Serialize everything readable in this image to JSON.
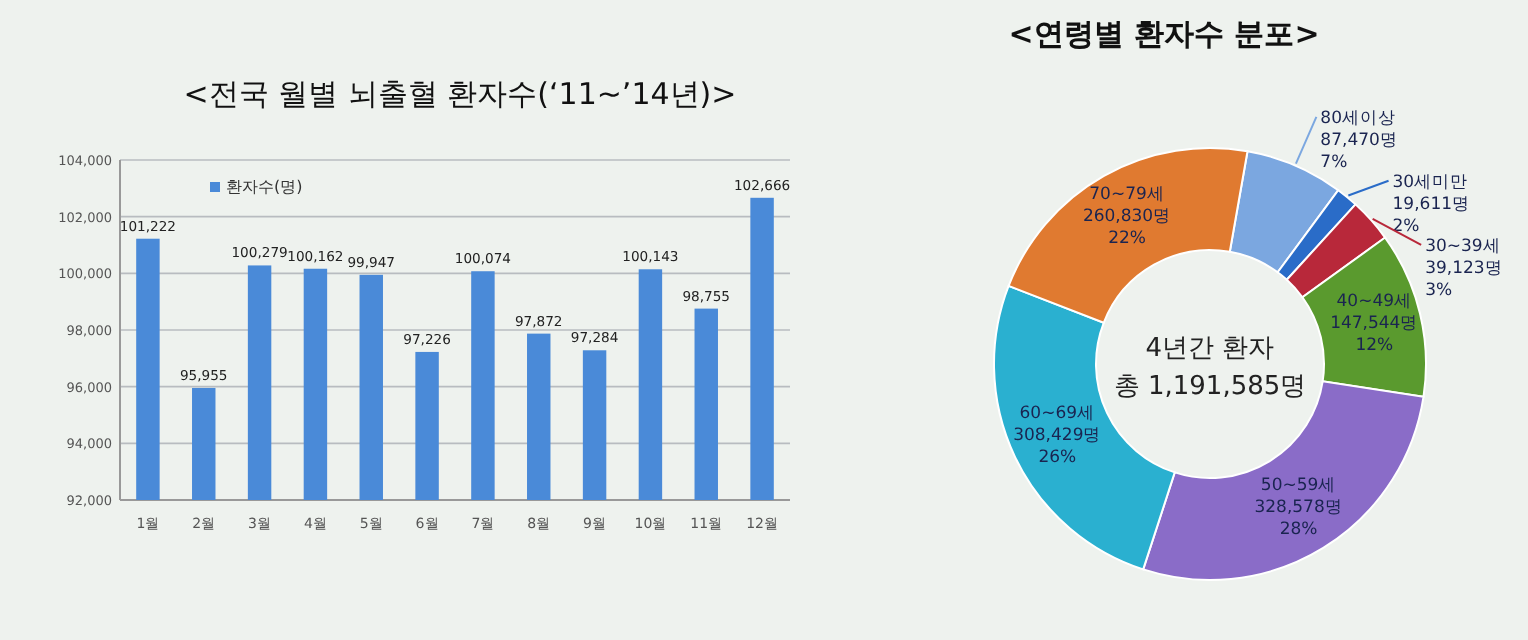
{
  "chart_data": [
    {
      "type": "bar",
      "title": "<전국 월별 뇌출혈 환자수(‘11~’14년)>",
      "categories": [
        "1월",
        "2월",
        "3월",
        "4월",
        "5월",
        "6월",
        "7월",
        "8월",
        "9월",
        "10월",
        "11월",
        "12월"
      ],
      "series": [
        {
          "name": "환자수(명)",
          "color": "#4a8ad8",
          "values": [
            101222,
            95955,
            100279,
            100162,
            99947,
            97226,
            100074,
            97872,
            97284,
            100143,
            98755,
            102666
          ],
          "value_labels": [
            "101,222",
            "95,955",
            "100,279",
            "100,162",
            "99,947",
            "97,226",
            "100,074",
            "97,872",
            "97,284",
            "100,143",
            "98,755",
            "102,666"
          ]
        }
      ],
      "ylim": [
        92000,
        104000
      ],
      "yticks": [
        {
          "value": 92000,
          "label": "92,000"
        },
        {
          "value": 94000,
          "label": "94,000"
        },
        {
          "value": 96000,
          "label": "96,000"
        },
        {
          "value": 98000,
          "label": "98,000"
        },
        {
          "value": 100000,
          "label": "100,000"
        },
        {
          "value": 102000,
          "label": "102,000"
        },
        {
          "value": 104000,
          "label": "104,000"
        }
      ],
      "grid": "y",
      "legend": "top left"
    },
    {
      "type": "donut",
      "title": "<연령별 환자수 분포>",
      "categories": [
        "80세이상",
        "30세미만",
        "30~39세",
        "40~49세",
        "50~59세",
        "60~69세",
        "70~79세"
      ],
      "values": [
        87470,
        19611,
        39123,
        147544,
        328578,
        308429,
        260830
      ],
      "value_labels": [
        "87,470명\n7%",
        "19,611명\n2%",
        "39,123명\n3%",
        "147,544명\n12%",
        "328,578명\n28%",
        "308,429명\n26%",
        "260,830명\n22%"
      ],
      "colors": [
        "#7ba7e0",
        "#2a6cc8",
        "#b8283a",
        "#5a9a2e",
        "#8a6cc8",
        "#2ab0d0",
        "#e07a30"
      ],
      "annotations": [
        "4년간 환자",
        "총 1,191,585명"
      ]
    }
  ]
}
